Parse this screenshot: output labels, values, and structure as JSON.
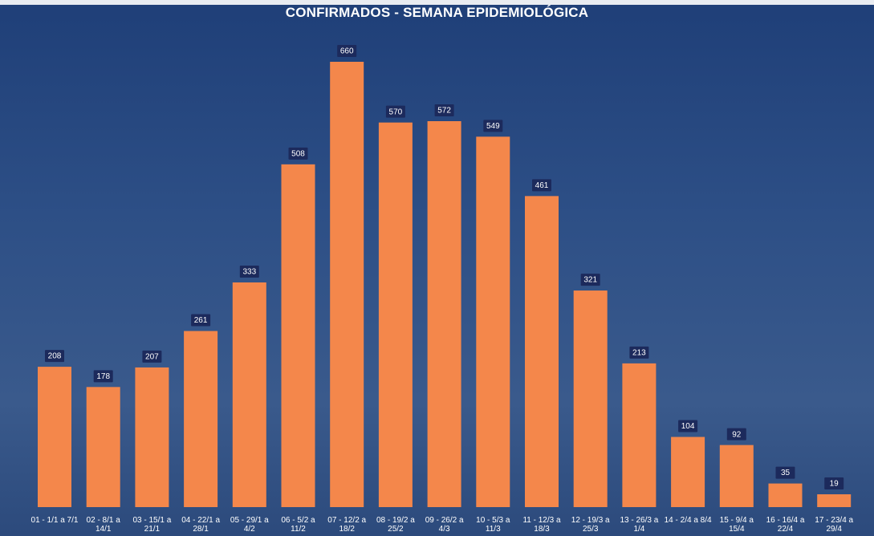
{
  "chart_data": {
    "type": "bar",
    "title": "CONFIRMADOS - SEMANA EPIDEMIOLÓGICA",
    "categories": [
      "01 - 1/1 a 7/1",
      "02 - 8/1 a 14/1",
      "03 - 15/1 a 21/1",
      "04 - 22/1 a 28/1",
      "05 - 29/1 a 4/2",
      "06 - 5/2 a 11/2",
      "07 - 12/2 a 18/2",
      "08 - 19/2 a 25/2",
      "09 - 26/2 a 4/3",
      "10 - 5/3 a 11/3",
      "11 - 12/3 a 18/3",
      "12 - 19/3 a 25/3",
      "13 - 26/3 a 1/4",
      "14 - 2/4 a 8/4",
      "15 - 9/4 a 15/4",
      "16 - 16/4 a 22/4",
      "17 - 23/4 a 29/4"
    ],
    "values": [
      208,
      178,
      207,
      261,
      333,
      508,
      660,
      570,
      572,
      549,
      461,
      321,
      213,
      104,
      92,
      35,
      19
    ],
    "color": "#f4874b"
  }
}
